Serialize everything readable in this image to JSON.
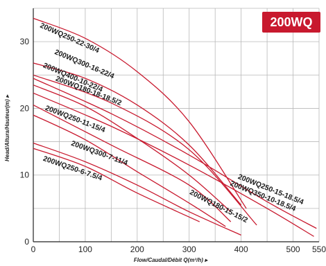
{
  "badge": {
    "text": "200WQ",
    "color": "#c8192e"
  },
  "chart_data": {
    "type": "line",
    "title": "",
    "xlabel": "Flow/Caudal/Débit Q(m³/h) ▸",
    "ylabel": "Head/Altura/Hauteur(m) ▸",
    "xlim": [
      0,
      550
    ],
    "ylim": [
      0,
      35
    ],
    "x_ticks": [
      "0",
      "100",
      "200",
      "300",
      "400",
      "500",
      "550"
    ],
    "y_ticks": [
      "0",
      "10",
      "20",
      "30"
    ],
    "grid": true,
    "line_color": "#c8192e",
    "series": [
      {
        "name": "200WQ250-22-30/4",
        "points": [
          [
            0,
            33.5
          ],
          [
            100,
            30.5
          ],
          [
            200,
            25.5
          ],
          [
            300,
            18
          ],
          [
            410,
            5
          ]
        ]
      },
      {
        "name": "200WQ300-16-22/4",
        "points": [
          [
            0,
            26.8
          ],
          [
            100,
            24.5
          ],
          [
            200,
            20.5
          ],
          [
            300,
            14.5
          ],
          [
            400,
            5.5
          ]
        ]
      },
      {
        "name": "200WQ400-10-22/4",
        "points": [
          [
            0,
            25
          ],
          [
            150,
            20.8
          ],
          [
            300,
            13.8
          ],
          [
            430,
            2.5
          ]
        ]
      },
      {
        "name": "200WQ180-18-18.5/2",
        "points": [
          [
            0,
            23.5
          ],
          [
            100,
            20.3
          ],
          [
            200,
            15.5
          ],
          [
            300,
            10
          ],
          [
            380,
            4.5
          ]
        ]
      },
      {
        "name": "200WQ250-15-18.5/4",
        "points": [
          [
            0,
            24.5
          ],
          [
            150,
            19.2
          ],
          [
            300,
            13
          ],
          [
            450,
            6
          ],
          [
            545,
            2
          ]
        ]
      },
      {
        "name": "200WQ350-10-18.5/4",
        "points": [
          [
            0,
            22.3
          ],
          [
            150,
            17.3
          ],
          [
            300,
            11.5
          ],
          [
            450,
            5
          ],
          [
            540,
            0.8
          ]
        ]
      },
      {
        "name": "200WQ250-11-15/4",
        "points": [
          [
            0,
            19
          ],
          [
            100,
            15.3
          ],
          [
            200,
            10.5
          ],
          [
            300,
            5.8
          ],
          [
            370,
            2.3
          ]
        ]
      },
      {
        "name": "200WQ180-15-15/2",
        "points": [
          [
            0,
            20.5
          ],
          [
            150,
            14.5
          ],
          [
            300,
            8.5
          ],
          [
            380,
            3
          ]
        ]
      },
      {
        "name": "200WQ300-7-11/4",
        "points": [
          [
            0,
            14.8
          ],
          [
            100,
            12
          ],
          [
            200,
            8.5
          ],
          [
            300,
            4.5
          ],
          [
            400,
            1
          ]
        ]
      },
      {
        "name": "200WQ250-6-7.5/4",
        "points": [
          [
            0,
            14
          ],
          [
            100,
            11.3
          ],
          [
            200,
            7.3
          ],
          [
            320,
            3
          ]
        ]
      }
    ],
    "curve_labels": [
      {
        "text": "200WQ250-22-30/4",
        "at": [
          12,
          32.2
        ],
        "angle_deg": 24
      },
      {
        "text": "200WQ300-16-22/4",
        "at": [
          40,
          28.2
        ],
        "angle_deg": 23
      },
      {
        "text": "200WQ400-10-22/4",
        "at": [
          18,
          26.2
        ],
        "angle_deg": 23
      },
      {
        "text": "200WQ180-18-18.5/2",
        "at": [
          42,
          24.2
        ],
        "angle_deg": 21
      },
      {
        "text": "200WQ250-11-15/4",
        "at": [
          22,
          19.8
        ],
        "angle_deg": 21
      },
      {
        "text": "200WQ300-7-11/4",
        "at": [
          72,
          14.5
        ],
        "angle_deg": 20
      },
      {
        "text": "200WQ250-6-7.5/4",
        "at": [
          18,
          12.2
        ],
        "angle_deg": 19
      },
      {
        "text": "200WQ250-15-18.5/4",
        "at": [
          393,
          9.5
        ],
        "angle_deg": 22
      },
      {
        "text": "200WQ350-10-18.5/4",
        "at": [
          378,
          8.5
        ],
        "angle_deg": 22
      },
      {
        "text": "200WQ180-15-15/2",
        "at": [
          300,
          7.2
        ],
        "angle_deg": 27
      }
    ]
  }
}
